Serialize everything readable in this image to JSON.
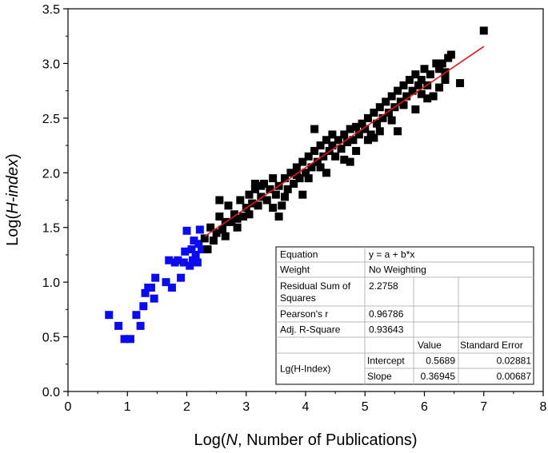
{
  "chart_data": {
    "type": "scatter",
    "xlabel_parts": [
      "Log(",
      "N",
      ", Number of Publications)"
    ],
    "ylabel_parts": [
      "Log(",
      "H-index",
      ")"
    ],
    "xlim": [
      0,
      8
    ],
    "ylim": [
      0,
      3.5
    ],
    "x_ticks": [
      "0",
      "1",
      "2",
      "3",
      "4",
      "5",
      "6",
      "7",
      "8"
    ],
    "y_ticks": [
      "0.0",
      "0.5",
      "1.0",
      "1.5",
      "2.0",
      "2.5",
      "3.0",
      "3.5"
    ],
    "grid": false,
    "fit_line": {
      "intercept": 0.5689,
      "slope": 0.36945,
      "x_range": [
        2.3,
        7.0
      ],
      "color": "#e8141c"
    },
    "series": [
      {
        "color": "#0b0bf0",
        "points": [
          [
            0.69,
            0.7
          ],
          [
            0.85,
            0.6
          ],
          [
            0.95,
            0.48
          ],
          [
            1.05,
            0.48
          ],
          [
            1.15,
            0.7
          ],
          [
            1.22,
            0.6
          ],
          [
            1.27,
            0.78
          ],
          [
            1.3,
            0.9
          ],
          [
            1.35,
            0.95
          ],
          [
            1.4,
            0.95
          ],
          [
            1.45,
            0.85
          ],
          [
            1.47,
            1.04
          ],
          [
            1.65,
            1.0
          ],
          [
            1.7,
            1.2
          ],
          [
            1.75,
            0.95
          ],
          [
            1.8,
            1.18
          ],
          [
            1.85,
            1.2
          ],
          [
            1.9,
            1.04
          ],
          [
            1.95,
            1.18
          ],
          [
            1.97,
            1.28
          ],
          [
            2.0,
            1.47
          ],
          [
            2.05,
            1.15
          ],
          [
            2.08,
            1.3
          ],
          [
            2.1,
            1.2
          ],
          [
            2.12,
            1.38
          ],
          [
            2.15,
            1.25
          ],
          [
            2.18,
            1.18
          ],
          [
            2.2,
            1.35
          ],
          [
            2.22,
            1.48
          ],
          [
            2.25,
            1.3
          ]
        ]
      },
      {
        "color": "#000000",
        "points": [
          [
            2.3,
            1.4
          ],
          [
            2.35,
            1.3
          ],
          [
            2.4,
            1.5
          ],
          [
            2.45,
            1.38
          ],
          [
            2.5,
            1.45
          ],
          [
            2.55,
            1.6
          ],
          [
            2.6,
            1.48
          ],
          [
            2.65,
            1.55
          ],
          [
            2.7,
            1.7
          ],
          [
            2.75,
            1.55
          ],
          [
            2.8,
            1.62
          ],
          [
            2.85,
            1.5
          ],
          [
            2.9,
            1.75
          ],
          [
            2.95,
            1.6
          ],
          [
            3.0,
            1.68
          ],
          [
            3.05,
            1.8
          ],
          [
            3.1,
            1.72
          ],
          [
            3.15,
            1.85
          ],
          [
            3.2,
            1.7
          ],
          [
            3.25,
            1.78
          ],
          [
            3.3,
            1.9
          ],
          [
            3.35,
            1.75
          ],
          [
            3.4,
            1.85
          ],
          [
            3.45,
            1.95
          ],
          [
            3.5,
            1.8
          ],
          [
            3.55,
            1.88
          ],
          [
            3.6,
            1.7
          ],
          [
            3.65,
            1.95
          ],
          [
            3.7,
            1.85
          ],
          [
            3.75,
            2.0
          ],
          [
            3.8,
            1.9
          ],
          [
            3.85,
            2.05
          ],
          [
            3.9,
            1.95
          ],
          [
            3.95,
            2.1
          ],
          [
            4.0,
            2.0
          ],
          [
            4.05,
            2.15
          ],
          [
            4.1,
            2.05
          ],
          [
            4.15,
            2.2
          ],
          [
            4.2,
            2.1
          ],
          [
            4.25,
            2.25
          ],
          [
            4.3,
            2.15
          ],
          [
            4.35,
            2.3
          ],
          [
            4.4,
            2.2
          ],
          [
            4.45,
            2.25
          ],
          [
            4.5,
            2.15
          ],
          [
            4.55,
            2.3
          ],
          [
            4.6,
            2.22
          ],
          [
            4.65,
            2.35
          ],
          [
            4.7,
            2.28
          ],
          [
            4.75,
            2.4
          ],
          [
            4.8,
            2.3
          ],
          [
            4.85,
            2.2
          ],
          [
            4.9,
            2.35
          ],
          [
            4.95,
            2.45
          ],
          [
            5.0,
            2.4
          ],
          [
            5.05,
            2.5
          ],
          [
            5.1,
            2.35
          ],
          [
            5.15,
            2.55
          ],
          [
            5.2,
            2.45
          ],
          [
            5.25,
            2.6
          ],
          [
            5.3,
            2.5
          ],
          [
            5.35,
            2.65
          ],
          [
            5.4,
            2.55
          ],
          [
            5.45,
            2.7
          ],
          [
            5.5,
            2.6
          ],
          [
            5.55,
            2.75
          ],
          [
            5.6,
            2.65
          ],
          [
            5.65,
            2.8
          ],
          [
            5.7,
            2.7
          ],
          [
            5.75,
            2.85
          ],
          [
            5.8,
            2.75
          ],
          [
            5.85,
            2.9
          ],
          [
            5.9,
            2.8
          ],
          [
            5.95,
            2.85
          ],
          [
            6.0,
            2.95
          ],
          [
            6.05,
            2.8
          ],
          [
            6.1,
            2.9
          ],
          [
            6.15,
            2.7
          ],
          [
            6.2,
            3.0
          ],
          [
            6.25,
            2.95
          ],
          [
            6.3,
            3.0
          ],
          [
            6.35,
            2.85
          ],
          [
            6.4,
            3.05
          ],
          [
            6.45,
            3.08
          ],
          [
            6.6,
            2.82
          ],
          [
            7.0,
            3.3
          ],
          [
            2.85,
            1.58
          ],
          [
            3.05,
            1.62
          ],
          [
            3.25,
            1.88
          ],
          [
            3.45,
            1.68
          ],
          [
            3.65,
            1.78
          ],
          [
            3.85,
            1.98
          ],
          [
            4.05,
            1.95
          ],
          [
            4.25,
            2.05
          ],
          [
            4.45,
            2.35
          ],
          [
            4.65,
            2.12
          ],
          [
            4.85,
            2.42
          ],
          [
            5.05,
            2.3
          ],
          [
            5.25,
            2.38
          ],
          [
            5.45,
            2.48
          ],
          [
            5.65,
            2.62
          ],
          [
            5.85,
            2.58
          ],
          [
            6.05,
            2.68
          ],
          [
            6.25,
            2.78
          ],
          [
            3.55,
            1.6
          ],
          [
            4.15,
            2.4
          ],
          [
            5.55,
            2.38
          ],
          [
            6.35,
            2.92
          ],
          [
            2.55,
            1.75
          ],
          [
            3.15,
            1.9
          ],
          [
            4.75,
            2.1
          ],
          [
            5.15,
            2.32
          ],
          [
            5.95,
            2.72
          ],
          [
            2.65,
            1.42
          ],
          [
            3.95,
            1.8
          ],
          [
            4.35,
            2.0
          ]
        ]
      }
    ],
    "table": {
      "rows": [
        [
          "Equation",
          "y = a + b*x",
          "",
          ""
        ],
        [
          "Weight",
          "No Weighting",
          "",
          ""
        ],
        [
          "Residual Sum of Squares",
          "2.2758",
          "",
          ""
        ],
        [
          "Pearson's r",
          "0.96786",
          "",
          ""
        ],
        [
          "Adj. R-Square",
          "0.93643",
          "",
          ""
        ],
        [
          "",
          "",
          "Value",
          "Standard Error"
        ],
        [
          "Lg(H-Index)",
          "Intercept",
          "0.5689",
          "0.02881"
        ],
        [
          "",
          "Slope",
          "0.36945",
          "0.00687"
        ]
      ]
    }
  }
}
